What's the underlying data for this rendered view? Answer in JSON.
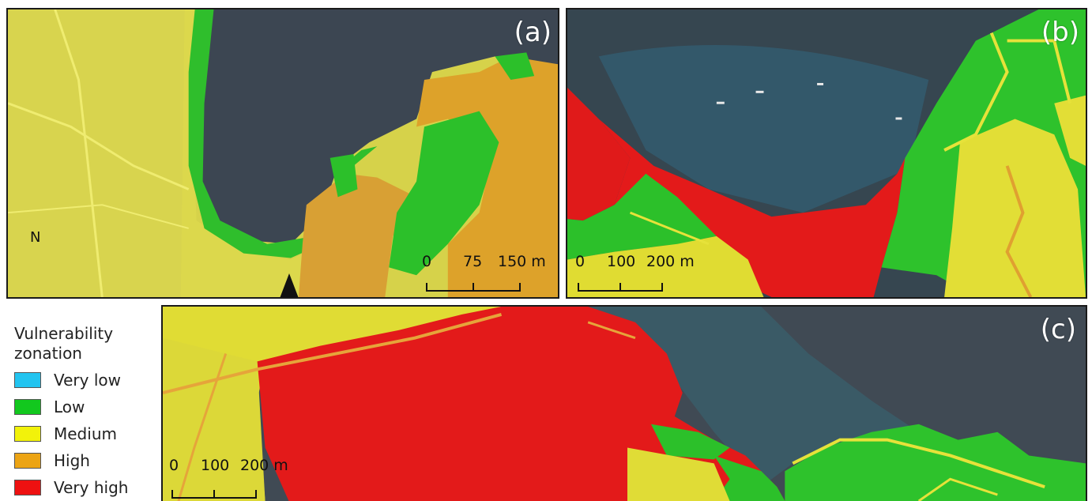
{
  "panels": {
    "a": {
      "label": "(a)",
      "scale": [
        "0",
        "75",
        "150 m"
      ]
    },
    "b": {
      "label": "(b)",
      "scale": [
        "0",
        "100",
        "200 m"
      ]
    },
    "c": {
      "label": "(c)",
      "scale": [
        "0",
        "100",
        "200 m"
      ]
    }
  },
  "north_arrow": {
    "label": "N"
  },
  "legend": {
    "title_line1": "Vulnerability",
    "title_line2": "zonation",
    "items": [
      {
        "label": "Very low",
        "color": "#22c4f0"
      },
      {
        "label": "Low",
        "color": "#12c81e"
      },
      {
        "label": "Medium",
        "color": "#f2f20a"
      },
      {
        "label": "High",
        "color": "#eca414"
      },
      {
        "label": "Very high",
        "color": "#ee1111"
      }
    ]
  },
  "colors": {
    "sea": "#3a4450",
    "low": "#2ec42a",
    "medium": "#e6e230",
    "high": "#e0a020",
    "very_high": "#e01818"
  }
}
